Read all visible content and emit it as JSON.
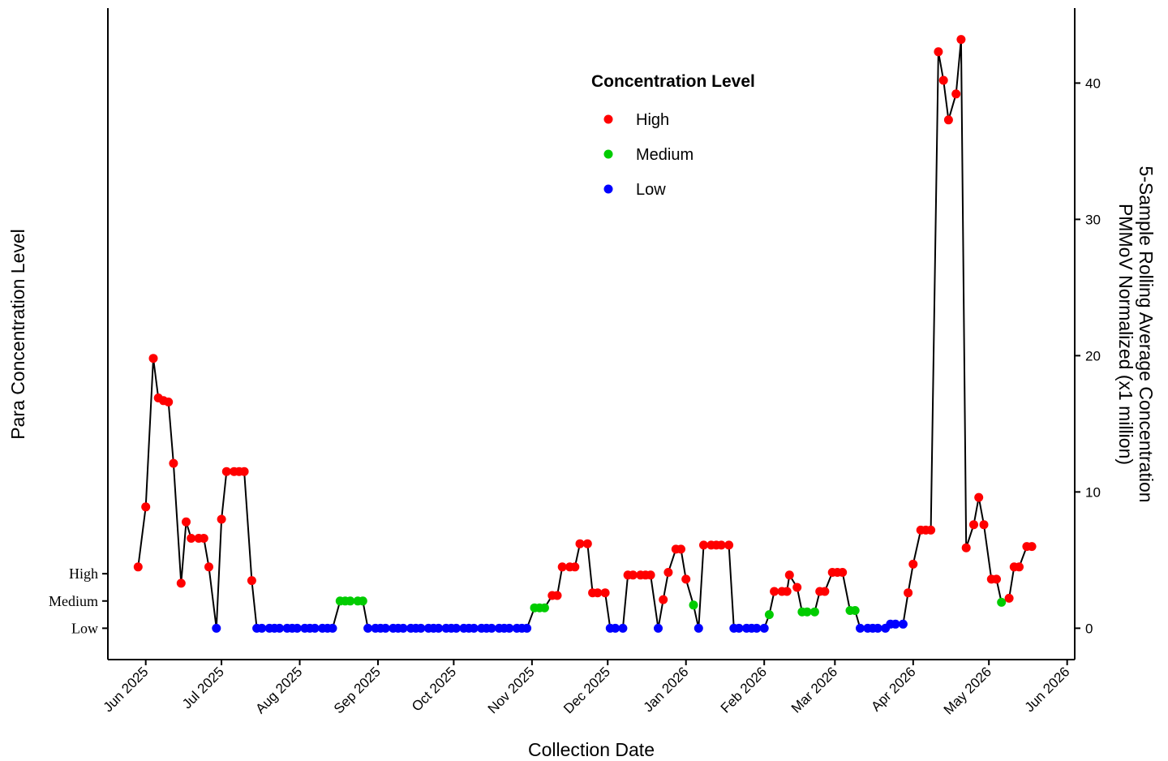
{
  "chart_data": {
    "type": "line",
    "x_axis_label": "Collection Date",
    "y_left_label": "Para Concentration Level",
    "y_right_label_lines": [
      "5-Sample Rolling Average Concentration",
      "PMMoV Normalized (x1 million)"
    ],
    "y_left_ticks": [
      "High",
      "Medium",
      "Low"
    ],
    "y_right_ticks": [
      "0",
      "10",
      "20",
      "30",
      "40"
    ],
    "x_ticks": [
      "Jun 2025",
      "Jul 2025",
      "Aug 2025",
      "Sep 2025",
      "Oct 2025",
      "Nov 2025",
      "Dec 2025",
      "Jan 2026",
      "Feb 2026",
      "Mar 2026",
      "Apr 2026",
      "May 2026",
      "Jun 2026"
    ],
    "x_tick_dates": [
      "2025-06-01",
      "2025-07-01",
      "2025-08-01",
      "2025-09-01",
      "2025-10-01",
      "2025-11-01",
      "2025-12-01",
      "2026-01-01",
      "2026-02-01",
      "2026-03-01",
      "2026-04-01",
      "2026-05-01",
      "2026-06-01"
    ],
    "x_range": [
      "2025-05-17",
      "2026-06-04"
    ],
    "y_right_range": [
      -2.3,
      45.5
    ],
    "legend": {
      "title": "Concentration Level",
      "position": "top-center",
      "entries": [
        {
          "label": "High",
          "color": "#FF0000"
        },
        {
          "label": "Medium",
          "color": "#00CC00"
        },
        {
          "label": "Low",
          "color": "#0000FF"
        }
      ]
    },
    "level_colors": {
      "High": "#FF0000",
      "Medium": "#00CC00",
      "Low": "#0000FF"
    },
    "line_color": "#000000",
    "points": [
      [
        "2025-05-29",
        4.5,
        "High"
      ],
      [
        "2025-06-01",
        8.9,
        "High"
      ],
      [
        "2025-06-04",
        19.8,
        "High"
      ],
      [
        "2025-06-06",
        16.9,
        "High"
      ],
      [
        "2025-06-08",
        16.7,
        "High"
      ],
      [
        "2025-06-10",
        16.6,
        "High"
      ],
      [
        "2025-06-12",
        12.1,
        "High"
      ],
      [
        "2025-06-15",
        3.3,
        "High"
      ],
      [
        "2025-06-17",
        7.8,
        "High"
      ],
      [
        "2025-06-19",
        6.6,
        "High"
      ],
      [
        "2025-06-22",
        6.6,
        "High"
      ],
      [
        "2025-06-24",
        6.6,
        "High"
      ],
      [
        "2025-06-26",
        4.5,
        "High"
      ],
      [
        "2025-06-29",
        0.0,
        "Low"
      ],
      [
        "2025-07-01",
        8.0,
        "High"
      ],
      [
        "2025-07-03",
        11.5,
        "High"
      ],
      [
        "2025-07-06",
        11.5,
        "High"
      ],
      [
        "2025-07-08",
        11.5,
        "High"
      ],
      [
        "2025-07-10",
        11.5,
        "High"
      ],
      [
        "2025-07-13",
        3.5,
        "High"
      ],
      [
        "2025-07-15",
        0.0,
        "Low"
      ],
      [
        "2025-07-17",
        0.0,
        "Low"
      ],
      [
        "2025-07-20",
        0.0,
        "Low"
      ],
      [
        "2025-07-22",
        0.0,
        "Low"
      ],
      [
        "2025-07-24",
        0.0,
        "Low"
      ],
      [
        "2025-07-27",
        0.0,
        "Low"
      ],
      [
        "2025-07-29",
        0.0,
        "Low"
      ],
      [
        "2025-07-31",
        0.0,
        "Low"
      ],
      [
        "2025-08-03",
        0.0,
        "Low"
      ],
      [
        "2025-08-05",
        0.0,
        "Low"
      ],
      [
        "2025-08-07",
        0.0,
        "Low"
      ],
      [
        "2025-08-10",
        0.0,
        "Low"
      ],
      [
        "2025-08-12",
        0.0,
        "Low"
      ],
      [
        "2025-08-14",
        0.0,
        "Low"
      ],
      [
        "2025-08-17",
        2.0,
        "Medium"
      ],
      [
        "2025-08-19",
        2.0,
        "Medium"
      ],
      [
        "2025-08-21",
        2.0,
        "Medium"
      ],
      [
        "2025-08-24",
        2.0,
        "Medium"
      ],
      [
        "2025-08-26",
        2.0,
        "Medium"
      ],
      [
        "2025-08-28",
        0.0,
        "Low"
      ],
      [
        "2025-08-31",
        0.0,
        "Low"
      ],
      [
        "2025-09-02",
        0.0,
        "Low"
      ],
      [
        "2025-09-04",
        0.0,
        "Low"
      ],
      [
        "2025-09-07",
        0.0,
        "Low"
      ],
      [
        "2025-09-09",
        0.0,
        "Low"
      ],
      [
        "2025-09-11",
        0.0,
        "Low"
      ],
      [
        "2025-09-14",
        0.0,
        "Low"
      ],
      [
        "2025-09-16",
        0.0,
        "Low"
      ],
      [
        "2025-09-18",
        0.0,
        "Low"
      ],
      [
        "2025-09-21",
        0.0,
        "Low"
      ],
      [
        "2025-09-23",
        0.0,
        "Low"
      ],
      [
        "2025-09-25",
        0.0,
        "Low"
      ],
      [
        "2025-09-28",
        0.0,
        "Low"
      ],
      [
        "2025-09-30",
        0.0,
        "Low"
      ],
      [
        "2025-10-02",
        0.0,
        "Low"
      ],
      [
        "2025-10-05",
        0.0,
        "Low"
      ],
      [
        "2025-10-07",
        0.0,
        "Low"
      ],
      [
        "2025-10-09",
        0.0,
        "Low"
      ],
      [
        "2025-10-12",
        0.0,
        "Low"
      ],
      [
        "2025-10-14",
        0.0,
        "Low"
      ],
      [
        "2025-10-16",
        0.0,
        "Low"
      ],
      [
        "2025-10-19",
        0.0,
        "Low"
      ],
      [
        "2025-10-21",
        0.0,
        "Low"
      ],
      [
        "2025-10-23",
        0.0,
        "Low"
      ],
      [
        "2025-10-26",
        0.0,
        "Low"
      ],
      [
        "2025-10-28",
        0.0,
        "Low"
      ],
      [
        "2025-10-30",
        0.0,
        "Low"
      ],
      [
        "2025-11-02",
        1.5,
        "Medium"
      ],
      [
        "2025-11-04",
        1.5,
        "Medium"
      ],
      [
        "2025-11-06",
        1.5,
        "Medium"
      ],
      [
        "2025-11-09",
        2.4,
        "High"
      ],
      [
        "2025-11-11",
        2.4,
        "High"
      ],
      [
        "2025-11-13",
        4.5,
        "High"
      ],
      [
        "2025-11-16",
        4.5,
        "High"
      ],
      [
        "2025-11-18",
        4.5,
        "High"
      ],
      [
        "2025-11-20",
        6.2,
        "High"
      ],
      [
        "2025-11-23",
        6.2,
        "High"
      ],
      [
        "2025-11-25",
        2.6,
        "High"
      ],
      [
        "2025-11-27",
        2.6,
        "High"
      ],
      [
        "2025-11-30",
        2.6,
        "High"
      ],
      [
        "2025-12-02",
        0.0,
        "Low"
      ],
      [
        "2025-12-04",
        0.0,
        "Low"
      ],
      [
        "2025-12-07",
        0.0,
        "Low"
      ],
      [
        "2025-12-09",
        3.9,
        "High"
      ],
      [
        "2025-12-11",
        3.9,
        "High"
      ],
      [
        "2025-12-14",
        3.9,
        "High"
      ],
      [
        "2025-12-16",
        3.9,
        "High"
      ],
      [
        "2025-12-18",
        3.9,
        "High"
      ],
      [
        "2025-12-21",
        0.0,
        "Low"
      ],
      [
        "2025-12-23",
        2.1,
        "High"
      ],
      [
        "2025-12-25",
        4.1,
        "High"
      ],
      [
        "2025-12-28",
        5.8,
        "High"
      ],
      [
        "2025-12-30",
        5.8,
        "High"
      ],
      [
        "2026-01-01",
        3.6,
        "High"
      ],
      [
        "2026-01-04",
        1.7,
        "Medium"
      ],
      [
        "2026-01-06",
        0.0,
        "Low"
      ],
      [
        "2026-01-08",
        6.1,
        "High"
      ],
      [
        "2026-01-11",
        6.1,
        "High"
      ],
      [
        "2026-01-13",
        6.1,
        "High"
      ],
      [
        "2026-01-15",
        6.1,
        "High"
      ],
      [
        "2026-01-18",
        6.1,
        "High"
      ],
      [
        "2026-01-20",
        0.0,
        "Low"
      ],
      [
        "2026-01-22",
        0.0,
        "Low"
      ],
      [
        "2026-01-25",
        0.0,
        "Low"
      ],
      [
        "2026-01-27",
        0.0,
        "Low"
      ],
      [
        "2026-01-29",
        0.0,
        "Low"
      ],
      [
        "2026-02-01",
        0.0,
        "Low"
      ],
      [
        "2026-02-03",
        1.0,
        "Medium"
      ],
      [
        "2026-02-05",
        2.7,
        "High"
      ],
      [
        "2026-02-08",
        2.7,
        "High"
      ],
      [
        "2026-02-10",
        2.7,
        "High"
      ],
      [
        "2026-02-11",
        3.9,
        "High"
      ],
      [
        "2026-02-14",
        3.0,
        "High"
      ],
      [
        "2026-02-16",
        1.2,
        "Medium"
      ],
      [
        "2026-02-18",
        1.2,
        "Medium"
      ],
      [
        "2026-02-21",
        1.2,
        "Medium"
      ],
      [
        "2026-02-23",
        2.7,
        "High"
      ],
      [
        "2026-02-25",
        2.7,
        "High"
      ],
      [
        "2026-02-28",
        4.1,
        "High"
      ],
      [
        "2026-03-02",
        4.1,
        "High"
      ],
      [
        "2026-03-04",
        4.1,
        "High"
      ],
      [
        "2026-03-07",
        1.3,
        "Medium"
      ],
      [
        "2026-03-09",
        1.3,
        "Medium"
      ],
      [
        "2026-03-11",
        0.0,
        "Low"
      ],
      [
        "2026-03-14",
        0.0,
        "Low"
      ],
      [
        "2026-03-16",
        0.0,
        "Low"
      ],
      [
        "2026-03-18",
        0.0,
        "Low"
      ],
      [
        "2026-03-21",
        0.0,
        "Low"
      ],
      [
        "2026-03-23",
        0.3,
        "Low"
      ],
      [
        "2026-03-25",
        0.3,
        "Low"
      ],
      [
        "2026-03-28",
        0.3,
        "Low"
      ],
      [
        "2026-03-30",
        2.6,
        "High"
      ],
      [
        "2026-04-01",
        4.7,
        "High"
      ],
      [
        "2026-04-04",
        7.2,
        "High"
      ],
      [
        "2026-04-06",
        7.2,
        "High"
      ],
      [
        "2026-04-08",
        7.2,
        "High"
      ],
      [
        "2026-04-11",
        42.3,
        "High"
      ],
      [
        "2026-04-13",
        40.2,
        "High"
      ],
      [
        "2026-04-15",
        37.3,
        "High"
      ],
      [
        "2026-04-18",
        39.2,
        "High"
      ],
      [
        "2026-04-20",
        43.2,
        "High"
      ],
      [
        "2026-04-22",
        5.9,
        "High"
      ],
      [
        "2026-04-25",
        7.6,
        "High"
      ],
      [
        "2026-04-27",
        9.6,
        "High"
      ],
      [
        "2026-04-29",
        7.6,
        "High"
      ],
      [
        "2026-05-02",
        3.6,
        "High"
      ],
      [
        "2026-05-04",
        3.6,
        "High"
      ],
      [
        "2026-05-06",
        1.9,
        "Medium"
      ],
      [
        "2026-05-09",
        2.2,
        "High"
      ],
      [
        "2026-05-11",
        4.5,
        "High"
      ],
      [
        "2026-05-13",
        4.5,
        "High"
      ],
      [
        "2026-05-16",
        6.0,
        "High"
      ],
      [
        "2026-05-18",
        6.0,
        "High"
      ]
    ]
  }
}
